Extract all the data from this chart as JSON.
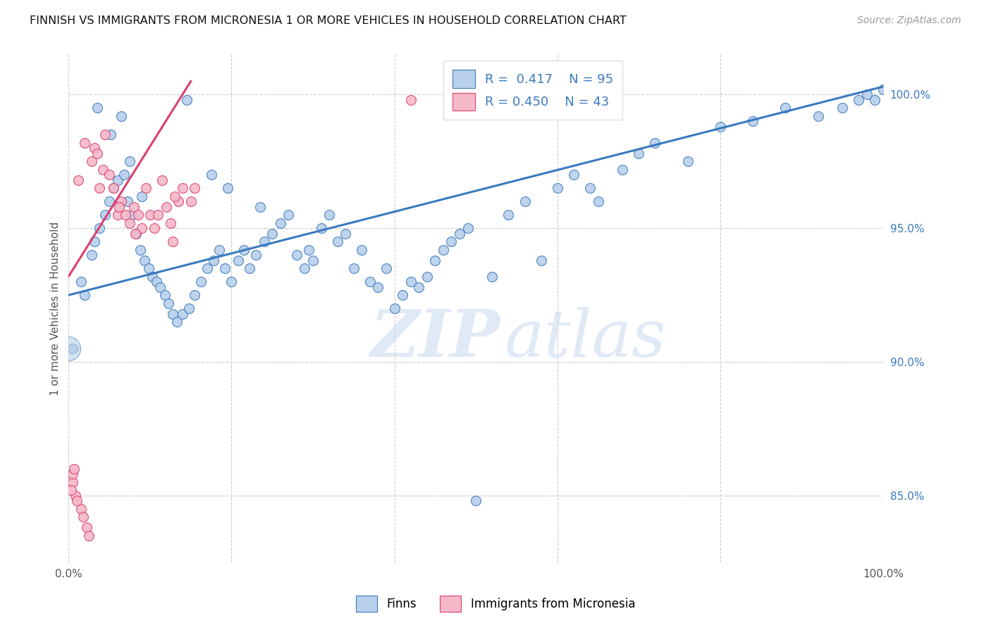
{
  "title": "FINNISH VS IMMIGRANTS FROM MICRONESIA 1 OR MORE VEHICLES IN HOUSEHOLD CORRELATION CHART",
  "source": "Source: ZipAtlas.com",
  "ylabel": "1 or more Vehicles in Household",
  "ylabel_tick_values": [
    85.0,
    90.0,
    95.0,
    100.0
  ],
  "xlim": [
    0.0,
    100.0
  ],
  "ylim": [
    82.5,
    101.5
  ],
  "legend_r_blue": "R = 0.417",
  "legend_n_blue": "N = 95",
  "legend_r_pink": "R = 0.450",
  "legend_n_pink": "N = 43",
  "legend_label_blue": "Finns",
  "legend_label_pink": "Immigrants from Micronesia",
  "blue_color": "#b8d0ea",
  "pink_color": "#f5b8c8",
  "blue_line_color": "#3a7abf",
  "pink_line_color": "#d94070",
  "watermark_zip": "ZIP",
  "watermark_atlas": "atlas",
  "blue_line_x0": 0.0,
  "blue_line_y0": 92.5,
  "blue_line_x1": 100.0,
  "blue_line_y1": 100.3,
  "pink_line_x0": 0.0,
  "pink_line_y0": 93.2,
  "pink_line_x1": 15.0,
  "pink_line_y1": 100.5,
  "blue_scatter_x": [
    1.5,
    2.0,
    2.8,
    3.2,
    3.8,
    4.5,
    5.0,
    5.5,
    6.0,
    6.8,
    7.2,
    7.8,
    8.3,
    8.8,
    9.3,
    9.8,
    10.3,
    10.8,
    11.2,
    11.8,
    12.3,
    12.8,
    13.3,
    14.0,
    14.8,
    15.5,
    16.2,
    17.0,
    17.8,
    18.5,
    19.2,
    20.0,
    20.8,
    21.5,
    22.2,
    23.0,
    24.0,
    25.0,
    26.0,
    27.0,
    28.0,
    29.0,
    30.0,
    31.0,
    32.0,
    33.0,
    34.0,
    35.0,
    36.0,
    37.0,
    38.0,
    39.0,
    40.0,
    41.0,
    42.0,
    43.0,
    44.0,
    45.0,
    46.0,
    47.0,
    48.0,
    49.0,
    50.0,
    52.0,
    54.0,
    56.0,
    58.0,
    60.0,
    62.0,
    64.0,
    65.0,
    68.0,
    70.0,
    72.0,
    76.0,
    80.0,
    84.0,
    88.0,
    92.0,
    95.0,
    97.0,
    98.0,
    99.0,
    100.0,
    0.5,
    3.5,
    5.2,
    6.5,
    7.5,
    9.0,
    14.5,
    17.5,
    19.5,
    23.5,
    29.5
  ],
  "blue_scatter_y": [
    93.0,
    92.5,
    94.0,
    94.5,
    95.0,
    95.5,
    96.0,
    96.5,
    96.8,
    97.0,
    96.0,
    95.5,
    94.8,
    94.2,
    93.8,
    93.5,
    93.2,
    93.0,
    92.8,
    92.5,
    92.2,
    91.8,
    91.5,
    91.8,
    92.0,
    92.5,
    93.0,
    93.5,
    93.8,
    94.2,
    93.5,
    93.0,
    93.8,
    94.2,
    93.5,
    94.0,
    94.5,
    94.8,
    95.2,
    95.5,
    94.0,
    93.5,
    93.8,
    95.0,
    95.5,
    94.5,
    94.8,
    93.5,
    94.2,
    93.0,
    92.8,
    93.5,
    92.0,
    92.5,
    93.0,
    92.8,
    93.2,
    93.8,
    94.2,
    94.5,
    94.8,
    95.0,
    84.8,
    93.2,
    95.5,
    96.0,
    93.8,
    96.5,
    97.0,
    96.5,
    96.0,
    97.2,
    97.8,
    98.2,
    97.5,
    98.8,
    99.0,
    99.5,
    99.2,
    99.5,
    99.8,
    100.0,
    99.8,
    100.2,
    90.5,
    99.5,
    98.5,
    99.2,
    97.5,
    96.2,
    99.8,
    97.0,
    96.5,
    95.8,
    94.2
  ],
  "pink_scatter_x": [
    0.5,
    0.8,
    1.0,
    1.5,
    1.8,
    2.2,
    2.5,
    2.8,
    3.2,
    3.5,
    3.8,
    4.2,
    4.5,
    5.0,
    5.5,
    6.0,
    6.5,
    7.0,
    7.5,
    8.0,
    8.5,
    9.0,
    9.5,
    10.0,
    10.5,
    11.0,
    11.5,
    12.0,
    12.5,
    13.5,
    14.0,
    15.0,
    15.5,
    42.0,
    0.3,
    0.5,
    0.7,
    1.2,
    2.0,
    6.2,
    8.2,
    12.8,
    13.0
  ],
  "pink_scatter_y": [
    85.5,
    85.0,
    84.8,
    84.5,
    84.2,
    83.8,
    83.5,
    97.5,
    98.0,
    97.8,
    96.5,
    97.2,
    98.5,
    97.0,
    96.5,
    95.5,
    96.0,
    95.5,
    95.2,
    95.8,
    95.5,
    95.0,
    96.5,
    95.5,
    95.0,
    95.5,
    96.8,
    95.8,
    95.2,
    96.0,
    96.5,
    96.0,
    96.5,
    99.8,
    85.2,
    85.8,
    86.0,
    96.8,
    98.2,
    95.8,
    94.8,
    94.5,
    96.2
  ]
}
